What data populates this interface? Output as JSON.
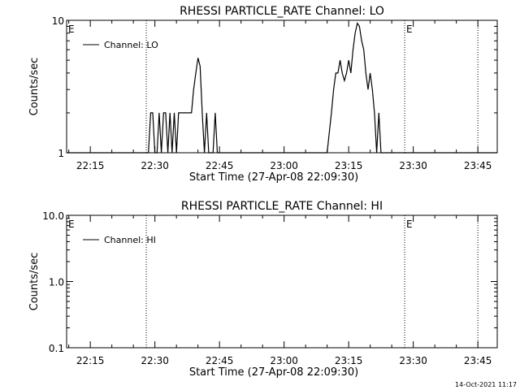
{
  "footer": {
    "timestamp": "14-Oct-2021 11:17"
  },
  "chart_data": [
    {
      "type": "line",
      "title": "RHESSI PARTICLE_RATE Channel: LO",
      "xlabel": "Start Time (27-Apr-08 22:09:30)",
      "ylabel": "Counts/sec",
      "y_scale": "log",
      "ylim": [
        1,
        10
      ],
      "y_ticks": [
        "1",
        "10"
      ],
      "xlim": [
        "22:09:30",
        "23:49:30"
      ],
      "x_ticks": [
        "22:15",
        "22:30",
        "22:45",
        "23:00",
        "23:15",
        "23:30",
        "23:45"
      ],
      "grid": false,
      "legend": "top-left",
      "vlines": [
        "22:28",
        "23:28",
        "23:45"
      ],
      "markers": [
        {
          "label": "E",
          "time": "22:09:30"
        },
        {
          "label": "E",
          "time": "23:28"
        }
      ],
      "series": [
        {
          "name": "Channel: LO",
          "color": "#000000",
          "points": [
            [
              "22:09:30",
              1
            ],
            [
              "22:28:30",
              1
            ],
            [
              "22:29:00",
              2
            ],
            [
              "22:29:30",
              2
            ],
            [
              "22:30:00",
              1
            ],
            [
              "22:30:30",
              1
            ],
            [
              "22:31:00",
              2
            ],
            [
              "22:31:30",
              1
            ],
            [
              "22:32:00",
              2
            ],
            [
              "22:32:30",
              2
            ],
            [
              "22:33:00",
              1
            ],
            [
              "22:33:30",
              2
            ],
            [
              "22:34:00",
              1
            ],
            [
              "22:34:30",
              2
            ],
            [
              "22:35:00",
              1
            ],
            [
              "22:35:30",
              2
            ],
            [
              "22:36:00",
              2
            ],
            [
              "22:37:00",
              2
            ],
            [
              "22:38:00",
              2
            ],
            [
              "22:38:30",
              2
            ],
            [
              "22:39:00",
              3
            ],
            [
              "22:39:30",
              4
            ],
            [
              "22:40:00",
              5.2
            ],
            [
              "22:40:30",
              4.5
            ],
            [
              "22:41:00",
              2
            ],
            [
              "22:41:30",
              1
            ],
            [
              "22:42:00",
              2
            ],
            [
              "22:42:30",
              1
            ],
            [
              "22:43:30",
              1
            ],
            [
              "22:44:00",
              2
            ],
            [
              "22:44:30",
              1
            ],
            [
              "23:10:00",
              1
            ],
            [
              "23:11:00",
              2
            ],
            [
              "23:11:30",
              3
            ],
            [
              "23:12:00",
              4
            ],
            [
              "23:12:30",
              4
            ],
            [
              "23:13:00",
              5
            ],
            [
              "23:13:30",
              4
            ],
            [
              "23:14:00",
              3.5
            ],
            [
              "23:14:30",
              4
            ],
            [
              "23:15:00",
              5
            ],
            [
              "23:15:30",
              4
            ],
            [
              "23:16:00",
              6
            ],
            [
              "23:16:30",
              8
            ],
            [
              "23:17:00",
              9.5
            ],
            [
              "23:17:30",
              9
            ],
            [
              "23:18:00",
              7
            ],
            [
              "23:18:30",
              6
            ],
            [
              "23:19:00",
              4
            ],
            [
              "23:19:30",
              3
            ],
            [
              "23:20:00",
              4
            ],
            [
              "23:20:30",
              3
            ],
            [
              "23:21:00",
              2
            ],
            [
              "23:21:30",
              1
            ],
            [
              "23:22:00",
              2
            ],
            [
              "23:22:30",
              1
            ],
            [
              "23:49:30",
              1
            ]
          ]
        }
      ]
    },
    {
      "type": "line",
      "title": "RHESSI PARTICLE_RATE Channel: HI",
      "xlabel": "Start Time (27-Apr-08 22:09:30)",
      "ylabel": "Counts/sec",
      "y_scale": "log",
      "ylim": [
        0.1,
        10
      ],
      "y_ticks": [
        "0.1",
        "1.0",
        "10.0"
      ],
      "xlim": [
        "22:09:30",
        "23:49:30"
      ],
      "x_ticks": [
        "22:15",
        "22:30",
        "22:45",
        "23:00",
        "23:15",
        "23:30",
        "23:45"
      ],
      "grid": false,
      "legend": "top-left",
      "vlines": [
        "22:28",
        "23:28",
        "23:45"
      ],
      "markers": [
        {
          "label": "E",
          "time": "22:09:30"
        },
        {
          "label": "E",
          "time": "23:28"
        }
      ],
      "series": [
        {
          "name": "Channel: HI",
          "color": "#000000",
          "points": []
        }
      ]
    }
  ]
}
